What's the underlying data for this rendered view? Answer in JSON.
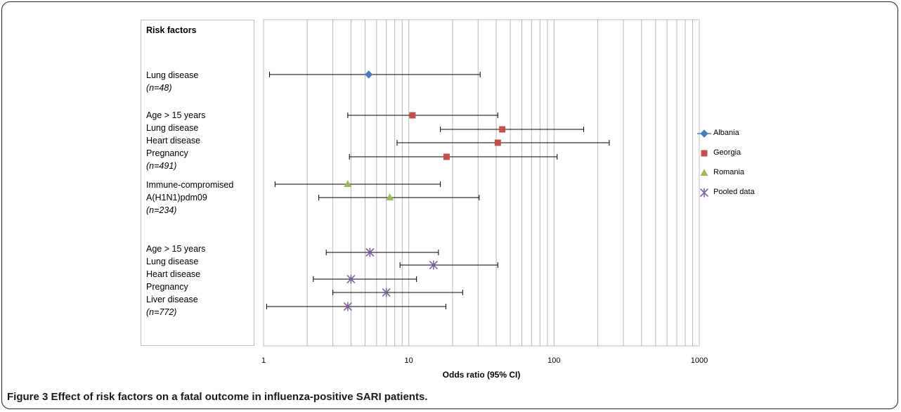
{
  "risk_factor_header": "Risk factors",
  "row_labels": [
    {
      "text": "Lung disease",
      "italic": false
    },
    {
      "text": "(n=48)",
      "italic": true
    },
    {
      "text": "Age > 15 years",
      "italic": false
    },
    {
      "text": "Lung disease",
      "italic": false
    },
    {
      "text": "Heart disease",
      "italic": false
    },
    {
      "text": "Pregnancy",
      "italic": false
    },
    {
      "text": "(n=491)",
      "italic": true
    },
    {
      "text": "Immune-compromised",
      "italic": false
    },
    {
      "text": "A(H1N1)pdm09",
      "italic": false
    },
    {
      "text": "(n=234)",
      "italic": true
    },
    {
      "text": "Age > 15 years",
      "italic": false
    },
    {
      "text": "Lung disease",
      "italic": false
    },
    {
      "text": "Heart disease",
      "italic": false
    },
    {
      "text": "Pregnancy",
      "italic": false
    },
    {
      "text": "Liver disease",
      "italic": false
    },
    {
      "text": "(n=772)",
      "italic": true
    }
  ],
  "caption": {
    "label": "Figure 3",
    "text": "Effect of risk factors on a fatal outcome in influenza-positive SARI patients."
  },
  "chart_data": {
    "type": "scatter",
    "xlabel": "Odds ratio (95% CI)",
    "xscale": "log",
    "xlim": [
      1,
      1000
    ],
    "xticks": [
      1,
      10,
      100,
      1000
    ],
    "xtick_labels": [
      "1",
      "10",
      "100",
      "1000"
    ],
    "grid": true,
    "legend": "right",
    "series": [
      {
        "name": "Albania",
        "marker": "diamond",
        "color": "#4a7ebb",
        "points": [
          {
            "row": "Lung disease",
            "or": 5.3,
            "lo": 1.1,
            "hi": 31
          }
        ]
      },
      {
        "name": "Georgia",
        "marker": "square",
        "color": "#c0504d",
        "points": [
          {
            "row": "Age > 15 years",
            "or": 10.6,
            "lo": 3.8,
            "hi": 41
          },
          {
            "row": "Lung disease",
            "or": 44,
            "lo": 16.5,
            "hi": 160
          },
          {
            "row": "Heart disease",
            "or": 41,
            "lo": 8.3,
            "hi": 240
          },
          {
            "row": "Pregnancy",
            "or": 18.2,
            "lo": 3.9,
            "hi": 105
          }
        ]
      },
      {
        "name": "Romania",
        "marker": "triangle",
        "color": "#9bbb59",
        "points": [
          {
            "row": "Immune-compromised",
            "or": 3.8,
            "lo": 1.2,
            "hi": 16.5
          },
          {
            "row": "A(H1N1)pdm09",
            "or": 7.4,
            "lo": 2.4,
            "hi": 30.5
          }
        ]
      },
      {
        "name": "Pooled data",
        "marker": "star",
        "color": "#8064a2",
        "points": [
          {
            "row": "Age > 15 years",
            "or": 5.4,
            "lo": 2.7,
            "hi": 16
          },
          {
            "row": "Lung disease",
            "or": 14.8,
            "lo": 8.7,
            "hi": 41
          },
          {
            "row": "Heart disease",
            "or": 4.0,
            "lo": 2.2,
            "hi": 11.3
          },
          {
            "row": "Pregnancy",
            "or": 7.0,
            "lo": 3.0,
            "hi": 23.5
          },
          {
            "row": "Liver disease",
            "or": 3.8,
            "lo": 1.05,
            "hi": 18
          }
        ]
      }
    ]
  }
}
